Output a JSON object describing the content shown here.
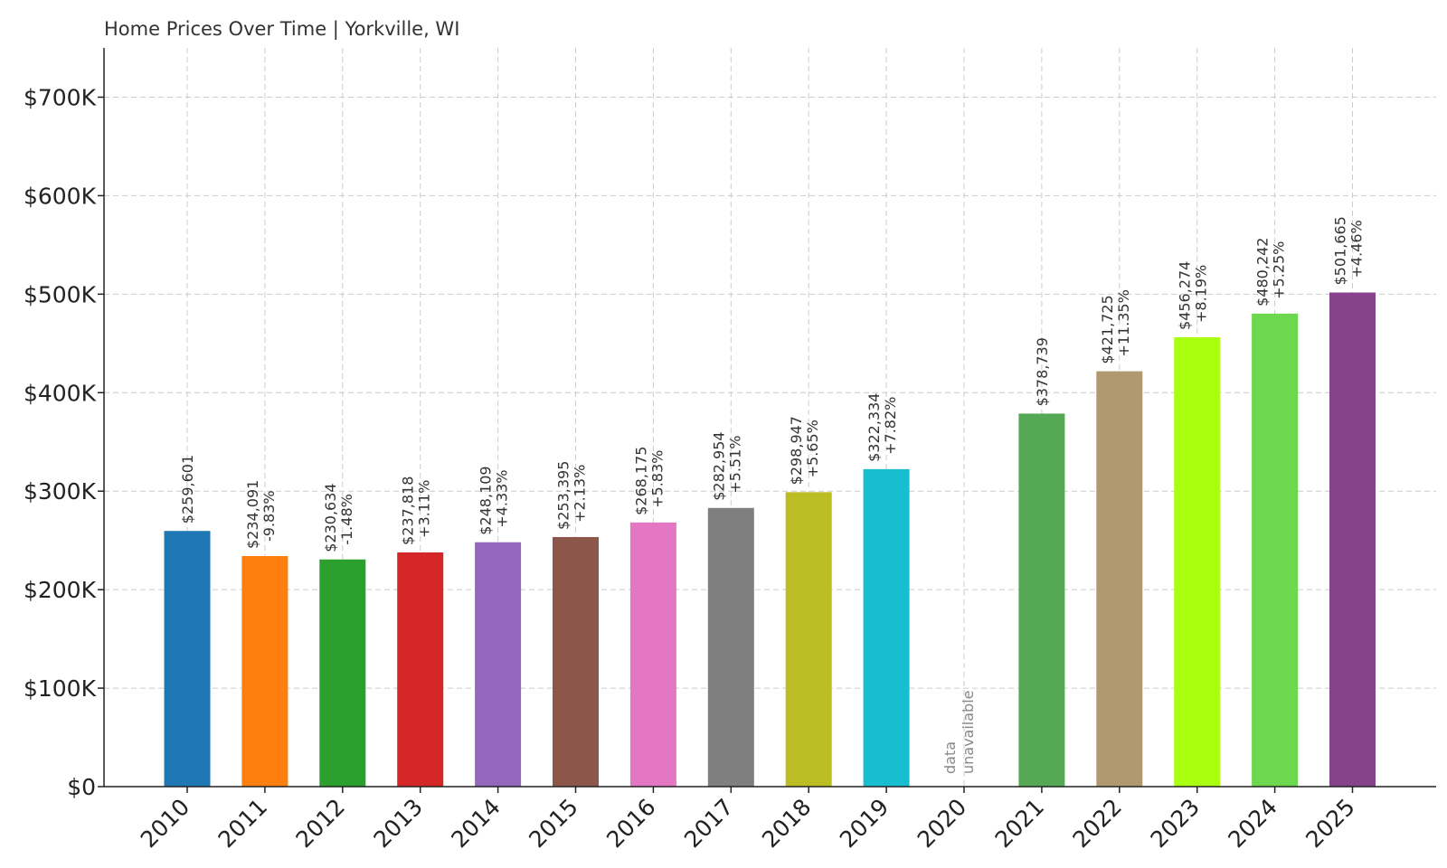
{
  "chart_data": {
    "type": "bar",
    "title": "Home Prices Over Time | Yorkville, WI",
    "xlabel": "",
    "ylabel": "",
    "ylim": [
      0,
      750000
    ],
    "yticks": [
      0,
      100000,
      200000,
      300000,
      400000,
      500000,
      600000,
      700000
    ],
    "ytick_labels": [
      "$0",
      "$100K",
      "$200K",
      "$300K",
      "$400K",
      "$500K",
      "$600K",
      "$700K"
    ],
    "grid": true,
    "categories": [
      "2010",
      "2011",
      "2012",
      "2013",
      "2014",
      "2015",
      "2016",
      "2017",
      "2018",
      "2019",
      "2020",
      "2021",
      "2022",
      "2023",
      "2024",
      "2025"
    ],
    "values": [
      259601,
      234091,
      230634,
      237818,
      248109,
      253395,
      268175,
      282954,
      298947,
      322334,
      null,
      378739,
      421725,
      456274,
      480242,
      501665
    ],
    "value_labels": [
      "$259,601",
      "$234,091",
      "$230,634",
      "$237,818",
      "$248,109",
      "$253,395",
      "$268,175",
      "$282,954",
      "$298,947",
      "$322,334",
      null,
      "$378,739",
      "$421,725",
      "$456,274",
      "$480,242",
      "$501,665"
    ],
    "change_labels": [
      null,
      "-9.83%",
      "-1.48%",
      "+3.11%",
      "+4.33%",
      "+2.13%",
      "+5.83%",
      "+5.51%",
      "+5.65%",
      "+7.82%",
      null,
      null,
      "+11.35%",
      "+8.19%",
      "+5.25%",
      "+4.46%"
    ],
    "missing_label_lines": [
      "data",
      "unavailable"
    ],
    "colors": [
      "#1f77b4",
      "#ff7f0e",
      "#2ca02c",
      "#d62728",
      "#9467bd",
      "#8c564b",
      "#e377c2",
      "#7f7f7f",
      "#bcbd22",
      "#17becf",
      "#cccccc",
      "#55a955",
      "#b09870",
      "#aaff10",
      "#6cd84e",
      "#86428a"
    ]
  }
}
